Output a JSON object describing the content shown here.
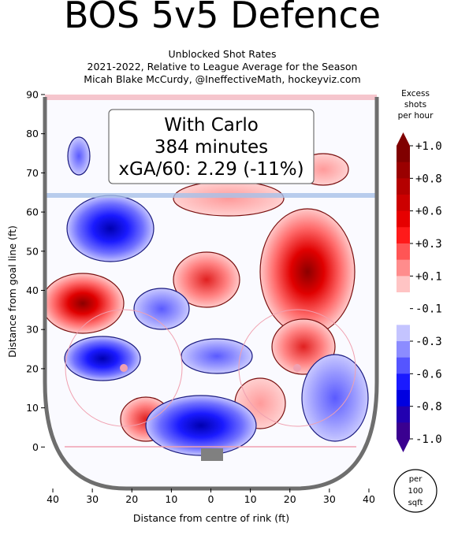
{
  "chart_data": {
    "type": "rink-heatmap",
    "title": "BOS 5v5 Defence",
    "subtitle": [
      "Unblocked Shot Rates",
      "2021-2022, Relative to League Average for the Season",
      "Micah Blake McCurdy, @IneffectiveMath, hockeyviz.com"
    ],
    "annotation": [
      "With Carlo",
      "384 minutes",
      "xGA/60: 2.29 (-11%)"
    ],
    "xlabel": "Distance from centre of rink (ft)",
    "ylabel": "Distance from goal line (ft)",
    "xlim": [
      -42,
      42
    ],
    "ylim": [
      -10.6,
      90
    ],
    "xticks": [
      {
        "value": -40,
        "label": "40"
      },
      {
        "value": -30,
        "label": "30"
      },
      {
        "value": -20,
        "label": "20"
      },
      {
        "value": -10,
        "label": "10"
      },
      0,
      {
        "value": 10,
        "label": "10"
      },
      {
        "value": 20,
        "label": "20"
      },
      {
        "value": 30,
        "label": "30"
      },
      {
        "value": 40,
        "label": "40"
      }
    ],
    "yticks": [
      0,
      10,
      20,
      30,
      40,
      50,
      60,
      70,
      80,
      90
    ],
    "colorbar": {
      "label": [
        "Excess",
        "shots",
        "per hour"
      ],
      "ticks": [
        {
          "value": 1.0,
          "label": "+1.0"
        },
        {
          "value": 0.8,
          "label": "+0.8"
        },
        {
          "value": 0.6,
          "label": "+0.6"
        },
        {
          "value": 0.3,
          "label": "+0.3"
        },
        {
          "value": 0.1,
          "label": "+0.1"
        },
        {
          "value": -0.1,
          "label": "-0.1"
        },
        {
          "value": -0.3,
          "label": "-0.3"
        },
        {
          "value": -0.6,
          "label": "-0.6"
        },
        {
          "value": -0.8,
          "label": "-0.8"
        },
        {
          "value": -1.0,
          "label": "-1.0"
        }
      ],
      "colors": [
        "#800000",
        "#9a0000",
        "#b40000",
        "#cc0000",
        "#e60000",
        "#ff1a1a",
        "#ff5555",
        "#ff8c8c",
        "#ffc4c4",
        "#ffffff",
        "#ffffff",
        "#c4c4ff",
        "#8c8cff",
        "#5555ff",
        "#1a1aff",
        "#0000e0",
        "#2200b0",
        "#3a0090"
      ]
    },
    "unit_note": [
      "per",
      "100",
      "sqft"
    ]
  }
}
